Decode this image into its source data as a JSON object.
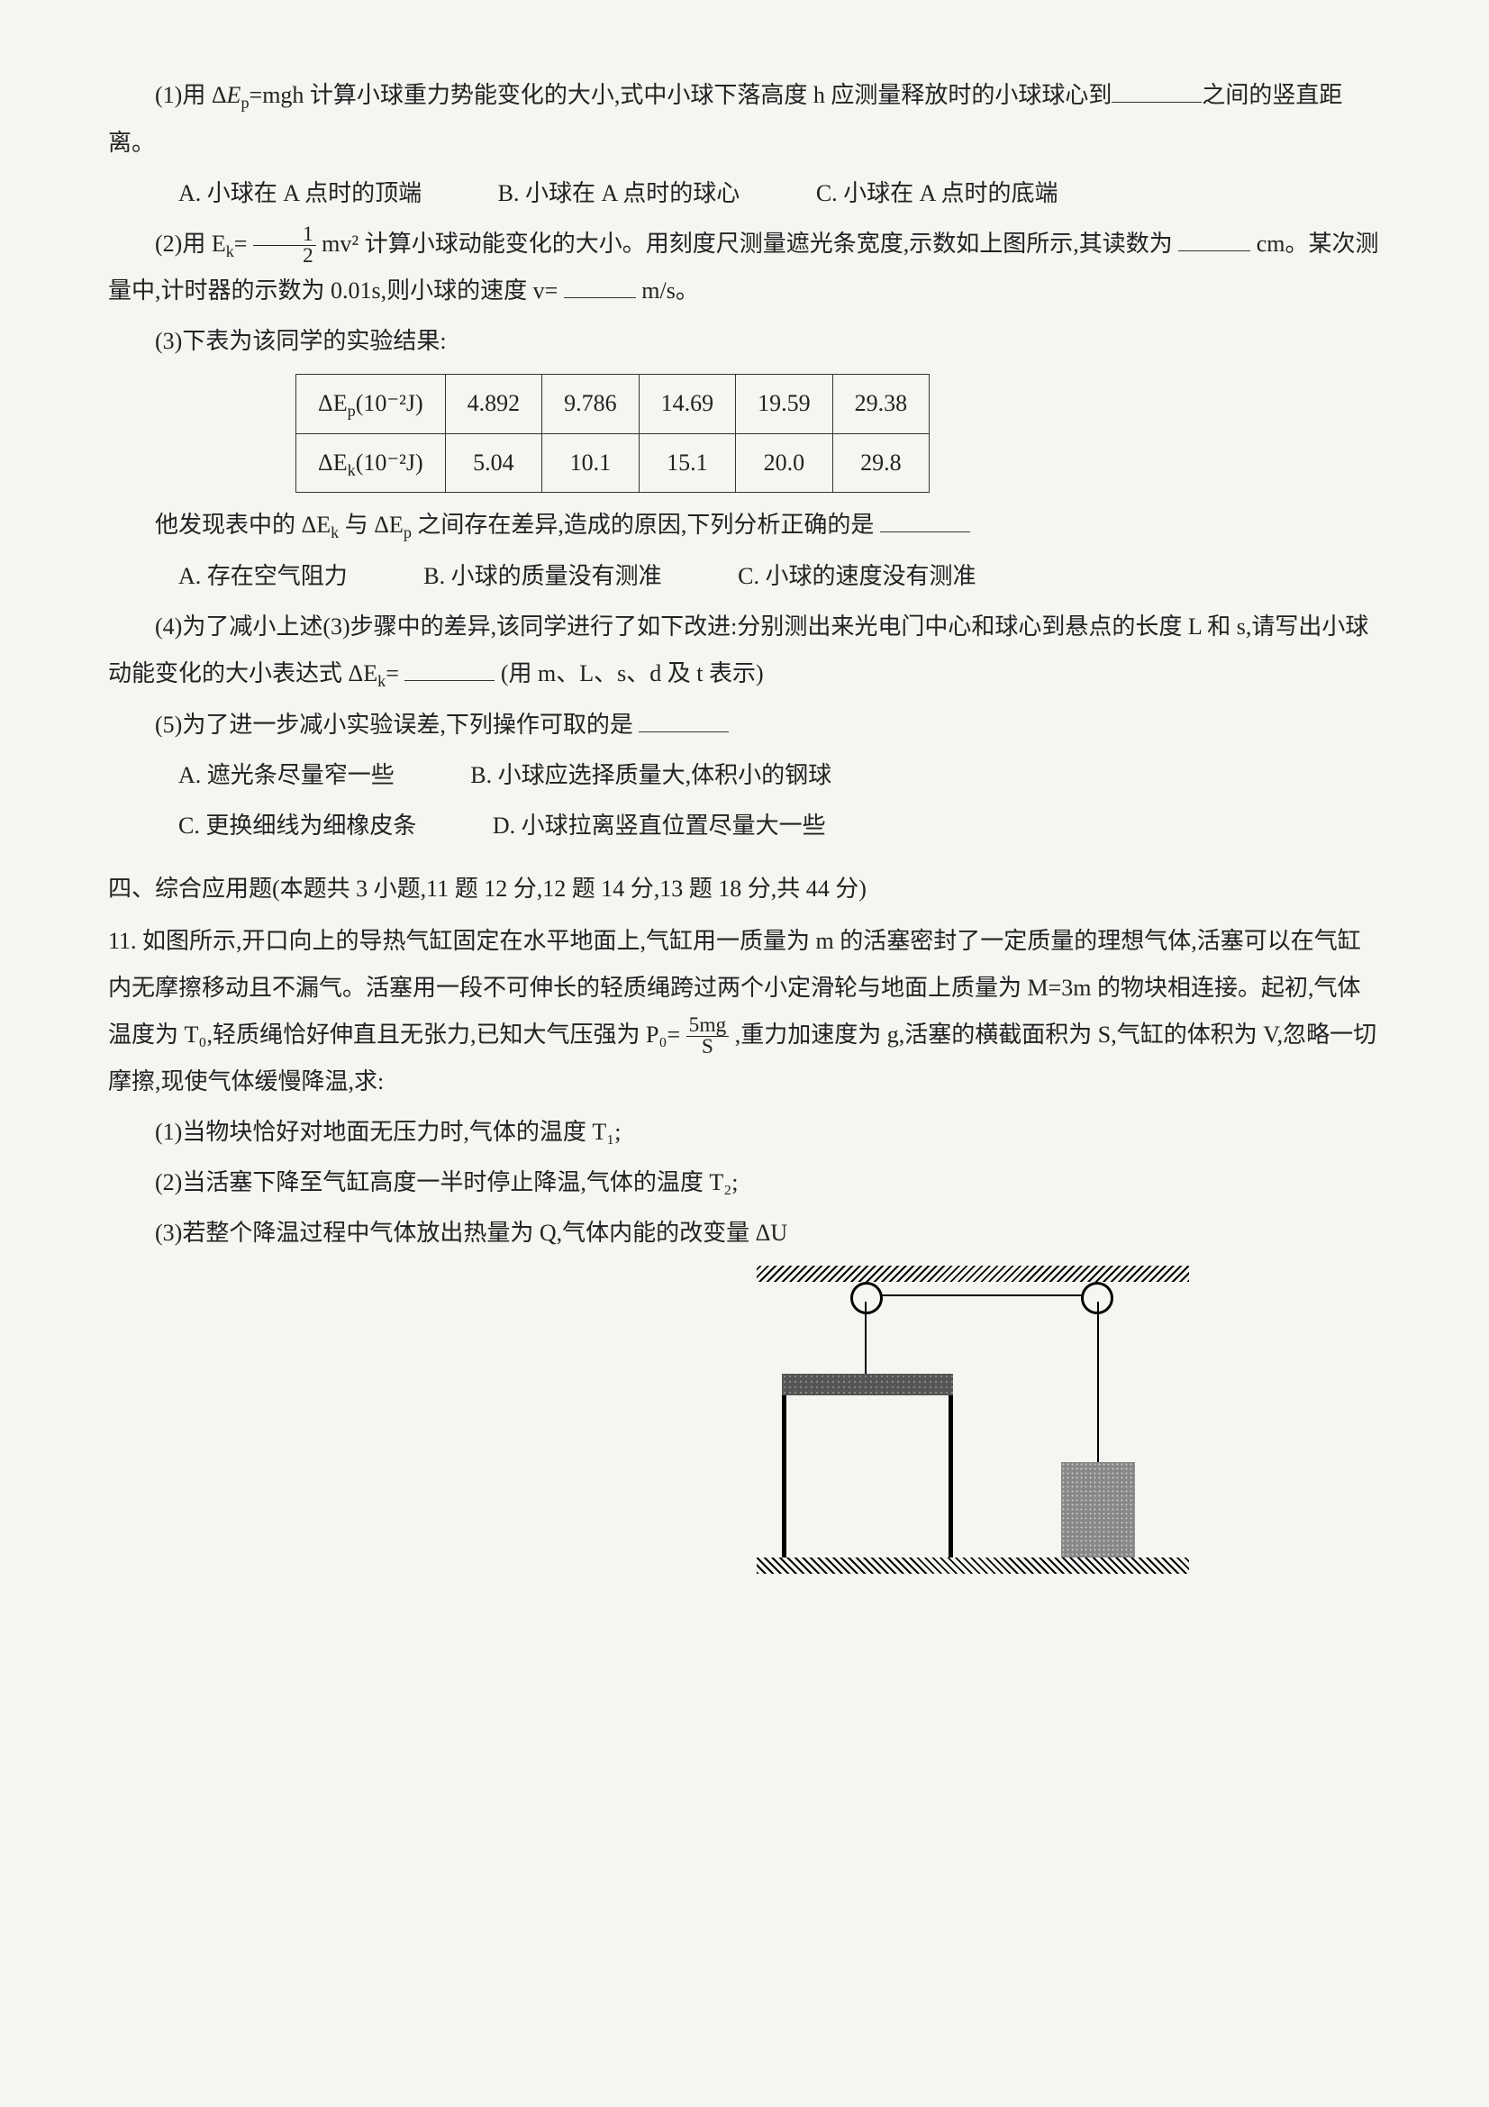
{
  "q1": {
    "part1_prefix": "(1)用 Δ",
    "Ep": "E",
    "p_sub": "p",
    "eq1": "=mgh 计算小球重力势能变化的大小,式中小球下落高度 h 应测量释放时的小球球心到",
    "part1_suffix": "之间的竖直距离。",
    "optA": "A. 小球在 A 点时的顶端",
    "optB": "B. 小球在 A 点时的球心",
    "optC": "C. 小球在 A 点时的底端",
    "part2_prefix": "(2)用 E",
    "k_sub": "k",
    "part2_eq": "=",
    "frac_num": "1",
    "frac_den": "2",
    "part2_mid": "mv² 计算小球动能变化的大小。用刻度尺测量遮光条宽度,示数如上图所示,其读数为",
    "part2_unit1": "cm。某次测量中,计时器的示数为 0.01s,则小球的速度 v=",
    "part2_unit2": "m/s。",
    "part3": "(3)下表为该同学的实验结果:",
    "table": {
      "row1_head": "ΔE",
      "row1_sub": "p",
      "row1_unit": "(10⁻²J)",
      "row1": [
        "4.892",
        "9.786",
        "14.69",
        "19.59",
        "29.38"
      ],
      "row2_head": "ΔE",
      "row2_sub": "k",
      "row2_unit": "(10⁻²J)",
      "row2": [
        "5.04",
        "10.1",
        "15.1",
        "20.0",
        "29.8"
      ]
    },
    "part3_after": "他发现表中的 ΔE",
    "part3_mid": " 与 ΔE",
    "part3_end": " 之间存在差异,造成的原因,下列分析正确的是",
    "opt3A": "A. 存在空气阻力",
    "opt3B": "B. 小球的质量没有测准",
    "opt3C": "C. 小球的速度没有测准",
    "part4_prefix": "(4)为了减小上述(3)步骤中的差异,该同学进行了如下改进:分别测出来光电门中心和球心到悬点的长度 L 和 s,请写出小球动能变化的大小表达式 ΔE",
    "part4_suffix": "(用 m、L、s、d 及 t 表示)",
    "part5": "(5)为了进一步减小实验误差,下列操作可取的是",
    "opt5A": "A. 遮光条尽量窄一些",
    "opt5B": "B. 小球应选择质量大,体积小的钢球",
    "opt5C": "C. 更换细线为细橡皮条",
    "opt5D": "D. 小球拉离竖直位置尽量大一些"
  },
  "section4": {
    "head": "四、综合应用题(本题共 3 小题,11 题 12 分,12 题 14 分,13 题 18 分,共 44 分)",
    "q11_intro": "11. 如图所示,开口向上的导热气缸固定在水平地面上,气缸用一质量为 m 的活塞密封了一定质量的理想气体,活塞可以在气缸内无摩擦移动且不漏气。活塞用一段不可伸长的轻质绳跨过两个小定滑轮与地面上质量为 M=3m 的物块相连接。起初,气体温度为 T₀,轻质绳恰好伸直且无张力,已知大气压强为 P₀=",
    "P0_num": "5mg",
    "P0_den": "S",
    "q11_mid": ",重力加速度为 g,活塞的横截面积为 S,气缸的体积为 V,忽略一切摩擦,现使气体缓慢降温,求:",
    "sub1": "(1)当物块恰好对地面无压力时,气体的温度 T₁;",
    "sub2": "(2)当活塞下降至气缸高度一半时停止降温,气体的温度 T₂;",
    "sub3": "(3)若整个降温过程中气体放出热量为 Q,气体内能的改变量 ΔU"
  }
}
